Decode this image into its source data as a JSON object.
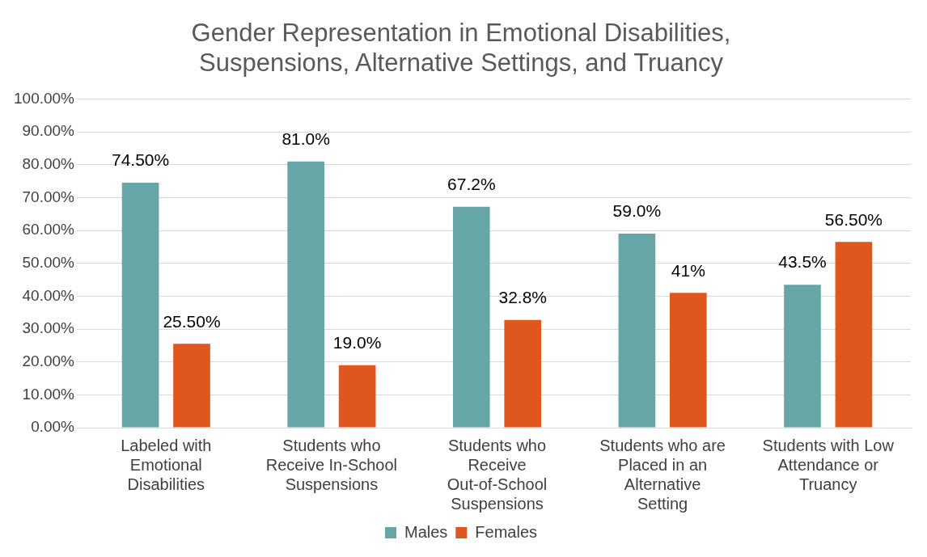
{
  "chart_data": {
    "type": "bar",
    "title": "Gender Representation in Emotional Disabilities, Suspensions, Alternative Settings, and Truancy",
    "categories": [
      "Labeled with Emotional Disabilities",
      "Students who Receive In-School Suspensions",
      "Students who Receive Out-of-School Suspensions",
      "Students who are Placed in an Alternative Setting",
      "Students with Low Attendance or Truancy"
    ],
    "series": [
      {
        "name": "Males",
        "color": "#67a6a6",
        "values": [
          74.5,
          81,
          67.2,
          59,
          43.5
        ],
        "value_labels": [
          "74.50%",
          "81.0%",
          "67.2%",
          "59.0%",
          "43.5%"
        ]
      },
      {
        "name": "Females",
        "color": "#e0561f",
        "values": [
          25.5,
          19,
          32.8,
          41,
          56.5
        ],
        "value_labels": [
          "25.50%",
          "19.0%",
          "32.8%",
          "41%",
          "56.50%"
        ]
      }
    ],
    "ylim": [
      0,
      100
    ],
    "yticks": [
      {
        "value": 0,
        "label": "0.00%"
      },
      {
        "value": 10,
        "label": "10.00%"
      },
      {
        "value": 20,
        "label": "20.00%"
      },
      {
        "value": 30,
        "label": "30.00%"
      },
      {
        "value": 40,
        "label": "40.00%"
      },
      {
        "value": 50,
        "label": "50.00%"
      },
      {
        "value": 60,
        "label": "60.00%"
      },
      {
        "value": 70,
        "label": "70.00%"
      },
      {
        "value": 80,
        "label": "80.00%"
      },
      {
        "value": 90,
        "label": "90.00%"
      },
      {
        "value": 100,
        "label": "100.00%"
      }
    ],
    "grid": "y",
    "legend": "bottom"
  }
}
